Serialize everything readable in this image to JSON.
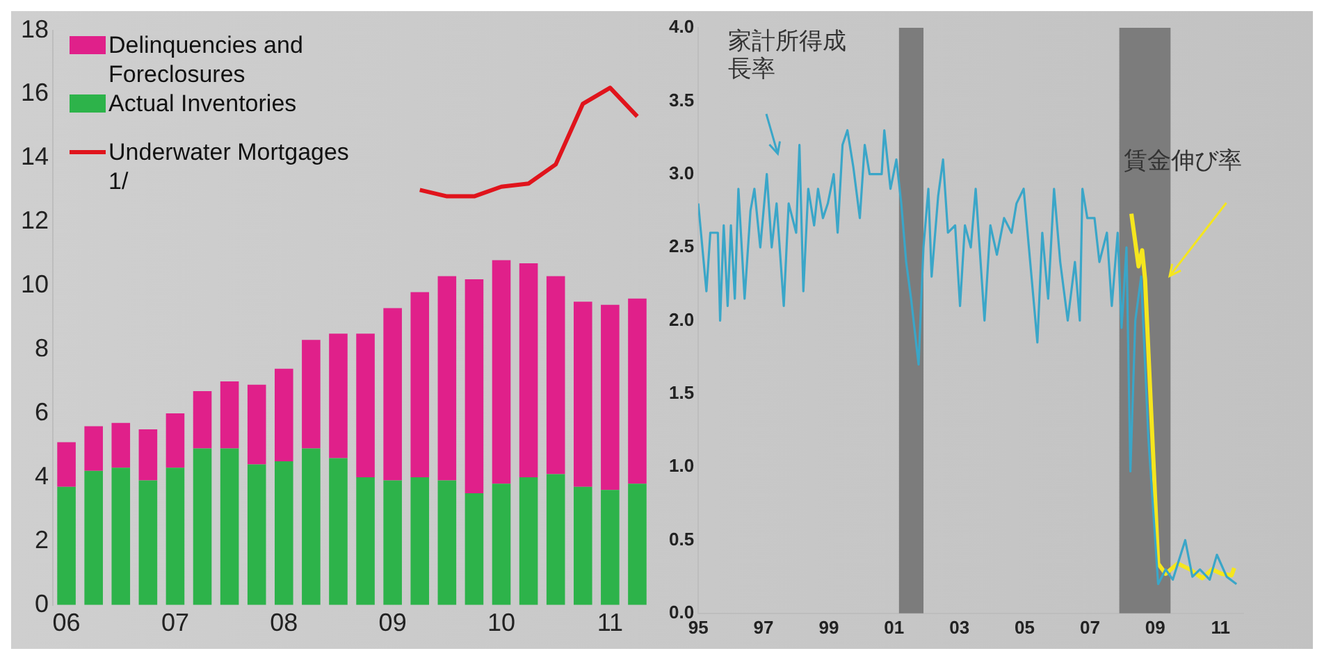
{
  "chart_data": [
    {
      "type": "bar",
      "stacked": true,
      "legend": "top left",
      "marker": "none",
      "categories": [
        "06",
        null,
        null,
        null,
        "07",
        null,
        null,
        null,
        "08",
        null,
        null,
        null,
        "09",
        null,
        null,
        null,
        "10",
        null,
        null,
        null,
        "11",
        null
      ],
      "ylim": [
        0,
        18
      ],
      "yticks": [
        0,
        2,
        4,
        6,
        8,
        10,
        12,
        14,
        16,
        18
      ],
      "series": [
        {
          "name": "Actual Inventories",
          "color": "#2db34a",
          "values": [
            3.7,
            4.2,
            4.3,
            3.9,
            4.3,
            4.9,
            4.9,
            4.4,
            4.5,
            4.9,
            4.6,
            4.0,
            3.9,
            4.0,
            3.9,
            3.5,
            3.8,
            4.0,
            4.1,
            3.7,
            3.6,
            3.8
          ]
        },
        {
          "name": "Delinquencies and Foreclosures",
          "color": "#e0208a",
          "values": [
            1.4,
            1.4,
            1.4,
            1.6,
            1.7,
            1.8,
            2.1,
            2.5,
            2.9,
            3.4,
            3.9,
            4.5,
            5.4,
            5.8,
            6.4,
            6.7,
            7.0,
            6.7,
            6.2,
            5.8,
            5.8,
            5.8
          ]
        },
        {
          "name": "Underwater Mortgages 1/",
          "type": "line",
          "color": "#e0141c",
          "values": [
            null,
            null,
            null,
            null,
            null,
            null,
            null,
            null,
            null,
            null,
            null,
            null,
            null,
            13.0,
            12.8,
            12.8,
            13.1,
            13.2,
            13.8,
            15.7,
            16.2,
            15.3
          ]
        }
      ]
    },
    {
      "type": "line",
      "marker": "none",
      "xlim": [
        1995,
        2011.7
      ],
      "xticks": [
        {
          "value": 1995,
          "label": "95"
        },
        {
          "value": 1997,
          "label": "97"
        },
        {
          "value": 1999,
          "label": "99"
        },
        {
          "value": 2001,
          "label": "01"
        },
        {
          "value": 2003,
          "label": "03"
        },
        {
          "value": 2005,
          "label": "05"
        },
        {
          "value": 2007,
          "label": "07"
        },
        {
          "value": 2009,
          "label": "09"
        },
        {
          "value": 2011,
          "label": "11"
        }
      ],
      "ylim": [
        0,
        4
      ],
      "yticks": [
        {
          "value": 0,
          "label": "0.0"
        },
        {
          "value": 0.5,
          "label": "0.5"
        },
        {
          "value": 1,
          "label": "1.0"
        },
        {
          "value": 1.5,
          "label": "1.5"
        },
        {
          "value": 2,
          "label": "2.0"
        },
        {
          "value": 2.5,
          "label": "2.5"
        },
        {
          "value": 3,
          "label": "3.0"
        },
        {
          "value": 3.5,
          "label": "3.5"
        },
        {
          "value": 4,
          "label": "4.0"
        }
      ],
      "bands": [
        {
          "axis": "x",
          "from": 2001.15,
          "to": 2001.9,
          "color": "#7c7c7c"
        },
        {
          "axis": "x",
          "from": 2007.9,
          "to": 2009.47,
          "color": "#7c7c7c"
        }
      ],
      "series": [
        {
          "name": "家計所得成長率",
          "color": "#3aa6c8",
          "x": [
            1995.0,
            1995.25,
            1995.37,
            1995.6,
            1995.67,
            1995.78,
            1995.9,
            1996.0,
            1996.12,
            1996.23,
            1996.42,
            1996.6,
            1996.72,
            1996.9,
            1997.1,
            1997.25,
            1997.4,
            1997.62,
            1997.77,
            1998.0,
            1998.1,
            1998.22,
            1998.37,
            1998.55,
            1998.67,
            1998.82,
            1998.97,
            1999.15,
            1999.27,
            1999.42,
            1999.57,
            1999.75,
            1999.95,
            2000.1,
            2000.25,
            2000.62,
            2000.7,
            2000.89,
            2001.07,
            2001.22,
            2001.37,
            2001.52,
            2001.75,
            2001.9,
            2002.05,
            2002.15,
            2002.35,
            2002.5,
            2002.65,
            2002.87,
            2003.02,
            2003.17,
            2003.35,
            2003.5,
            2003.77,
            2003.95,
            2004.15,
            2004.37,
            2004.6,
            2004.75,
            2004.97,
            2005.19,
            2005.39,
            2005.54,
            2005.72,
            2005.9,
            2006.09,
            2006.32,
            2006.54,
            2006.69,
            2006.77,
            2006.92,
            2007.14,
            2007.29,
            2007.52,
            2007.67,
            2007.85,
            2007.97,
            2008.12,
            2008.24,
            2008.39,
            2008.57,
            2008.79,
            2009.09,
            2009.32,
            2009.54,
            2009.92,
            2010.14,
            2010.37,
            2010.67,
            2010.89,
            2011.19,
            2011.49
          ],
          "values": [
            2.8,
            2.2,
            2.6,
            2.6,
            2.0,
            2.65,
            2.1,
            2.65,
            2.15,
            2.9,
            2.15,
            2.75,
            2.9,
            2.5,
            3.0,
            2.5,
            2.8,
            2.1,
            2.8,
            2.6,
            3.2,
            2.2,
            2.9,
            2.65,
            2.9,
            2.7,
            2.8,
            3.0,
            2.6,
            3.2,
            3.3,
            3.05,
            2.7,
            3.2,
            3.0,
            3.0,
            3.3,
            2.9,
            3.1,
            2.8,
            2.4,
            2.15,
            1.7,
            2.5,
            2.9,
            2.3,
            2.85,
            3.1,
            2.6,
            2.65,
            2.1,
            2.65,
            2.5,
            2.9,
            2.0,
            2.65,
            2.45,
            2.7,
            2.6,
            2.8,
            2.9,
            2.35,
            1.85,
            2.6,
            2.15,
            2.9,
            2.4,
            2.0,
            2.4,
            2.0,
            2.9,
            2.7,
            2.7,
            2.4,
            2.6,
            2.1,
            2.6,
            1.95,
            2.5,
            0.97,
            2.0,
            2.3,
            1.2,
            0.2,
            0.3,
            0.23,
            0.5,
            0.25,
            0.3,
            0.23,
            0.4,
            0.25,
            0.2
          ]
        },
        {
          "name": "賃金伸び率",
          "color": "#f5e61e",
          "x": [
            2008.27,
            2008.49,
            2008.6,
            2008.69,
            2009.09,
            2009.32,
            2009.69,
            2010.07,
            2010.44,
            2010.74,
            2011.04,
            2011.34,
            2011.42
          ],
          "values": [
            2.73,
            2.37,
            2.48,
            2.28,
            0.34,
            0.27,
            0.34,
            0.3,
            0.24,
            0.3,
            0.27,
            0.26,
            0.31
          ]
        }
      ]
    }
  ]
}
